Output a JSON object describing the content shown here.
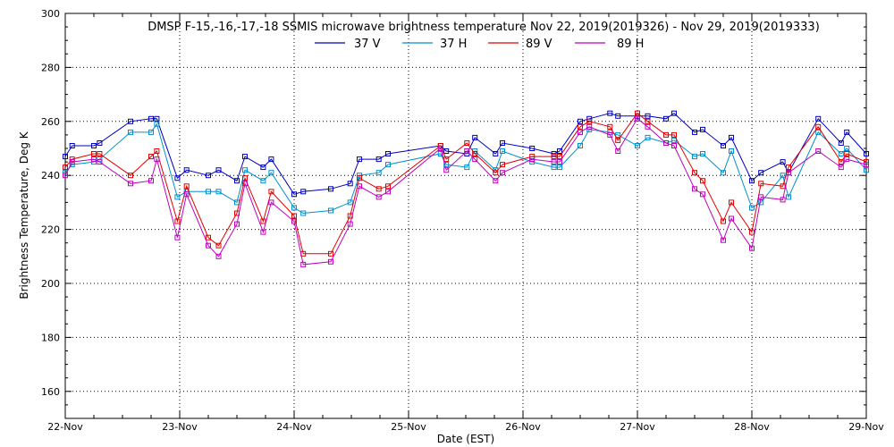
{
  "chart_data": {
    "type": "line",
    "title": "DMSP F-15,-16,-17,-18 SSMIS microwave brightness temperature Nov 22, 2019(2019326) - Nov 29, 2019(2019333)",
    "xlabel": "Date (EST)",
    "ylabel": "Brightness Temperature, Deg K",
    "xlim": [
      0,
      7
    ],
    "ylim": [
      150,
      300
    ],
    "yticks": [
      160,
      180,
      200,
      220,
      240,
      260,
      280,
      300
    ],
    "xticks": [
      {
        "value": 0,
        "label": "22-Nov"
      },
      {
        "value": 1,
        "label": "23-Nov"
      },
      {
        "value": 2,
        "label": "24-Nov"
      },
      {
        "value": 3,
        "label": "25-Nov"
      },
      {
        "value": 4,
        "label": "26-Nov"
      },
      {
        "value": 5,
        "label": "27-Nov"
      },
      {
        "value": 6,
        "label": "28-Nov"
      },
      {
        "value": 7,
        "label": "29-Nov"
      }
    ],
    "grid": true,
    "legend_position": "top-center",
    "series": [
      {
        "name": "37 V",
        "color": "#0000c0",
        "points": [
          [
            0.0,
            247
          ],
          [
            0.06,
            251
          ],
          [
            0.25,
            251
          ],
          [
            0.3,
            252
          ],
          [
            0.57,
            260
          ],
          [
            0.75,
            261
          ],
          [
            0.8,
            261
          ],
          [
            0.98,
            239
          ],
          [
            1.06,
            242
          ],
          [
            1.25,
            240
          ],
          [
            1.34,
            242
          ],
          [
            1.5,
            238
          ],
          [
            1.57,
            247
          ],
          [
            1.73,
            243
          ],
          [
            1.8,
            246
          ],
          [
            2.0,
            233
          ],
          [
            2.08,
            234
          ],
          [
            2.32,
            235
          ],
          [
            2.49,
            237
          ],
          [
            2.57,
            246
          ],
          [
            2.74,
            246
          ],
          [
            2.82,
            248
          ],
          [
            3.28,
            251
          ],
          [
            3.33,
            249
          ],
          [
            3.51,
            248
          ],
          [
            3.58,
            254
          ],
          [
            3.76,
            248
          ],
          [
            3.82,
            252
          ],
          [
            4.08,
            250
          ],
          [
            4.27,
            248
          ],
          [
            4.32,
            249
          ],
          [
            4.5,
            260
          ],
          [
            4.58,
            261
          ],
          [
            4.76,
            263
          ],
          [
            4.83,
            262
          ],
          [
            5.0,
            262
          ],
          [
            5.09,
            262
          ],
          [
            5.25,
            261
          ],
          [
            5.32,
            263
          ],
          [
            5.5,
            256
          ],
          [
            5.57,
            257
          ],
          [
            5.75,
            251
          ],
          [
            5.82,
            254
          ],
          [
            6.0,
            238
          ],
          [
            6.08,
            241
          ],
          [
            6.27,
            245
          ],
          [
            6.32,
            241
          ],
          [
            6.58,
            261
          ],
          [
            6.78,
            252
          ],
          [
            6.83,
            256
          ],
          [
            7.0,
            248
          ]
        ]
      },
      {
        "name": "37 H",
        "color": "#0090d0",
        "points": [
          [
            0.0,
            241
          ],
          [
            0.06,
            244
          ],
          [
            0.25,
            245
          ],
          [
            0.3,
            246
          ],
          [
            0.57,
            256
          ],
          [
            0.75,
            256
          ],
          [
            0.8,
            259
          ],
          [
            0.98,
            232
          ],
          [
            1.06,
            234
          ],
          [
            1.25,
            234
          ],
          [
            1.34,
            234
          ],
          [
            1.5,
            230
          ],
          [
            1.57,
            242
          ],
          [
            1.73,
            238
          ],
          [
            1.8,
            241
          ],
          [
            2.0,
            228
          ],
          [
            2.08,
            226
          ],
          [
            2.32,
            227
          ],
          [
            2.49,
            230
          ],
          [
            2.57,
            240
          ],
          [
            2.74,
            241
          ],
          [
            2.82,
            244
          ],
          [
            3.28,
            248
          ],
          [
            3.33,
            244
          ],
          [
            3.51,
            243
          ],
          [
            3.58,
            249
          ],
          [
            3.76,
            242
          ],
          [
            3.82,
            249
          ],
          [
            4.08,
            245
          ],
          [
            4.27,
            243
          ],
          [
            4.32,
            243
          ],
          [
            4.5,
            251
          ],
          [
            4.58,
            257
          ],
          [
            4.76,
            256
          ],
          [
            4.83,
            255
          ],
          [
            5.0,
            251
          ],
          [
            5.09,
            254
          ],
          [
            5.25,
            252
          ],
          [
            5.32,
            253
          ],
          [
            5.5,
            247
          ],
          [
            5.57,
            248
          ],
          [
            5.75,
            241
          ],
          [
            5.82,
            249
          ],
          [
            6.0,
            228
          ],
          [
            6.08,
            230
          ],
          [
            6.27,
            240
          ],
          [
            6.32,
            232
          ],
          [
            6.58,
            256
          ],
          [
            6.78,
            248
          ],
          [
            6.83,
            250
          ],
          [
            7.0,
            242
          ]
        ]
      },
      {
        "name": "89 V",
        "color": "#e00000",
        "points": [
          [
            0.0,
            243
          ],
          [
            0.06,
            246
          ],
          [
            0.25,
            248
          ],
          [
            0.3,
            248
          ],
          [
            0.57,
            240
          ],
          [
            0.75,
            247
          ],
          [
            0.8,
            249
          ],
          [
            0.98,
            223
          ],
          [
            1.06,
            236
          ],
          [
            1.25,
            217
          ],
          [
            1.34,
            214
          ],
          [
            1.5,
            226
          ],
          [
            1.57,
            239
          ],
          [
            1.73,
            223
          ],
          [
            1.8,
            234
          ],
          [
            2.0,
            225
          ],
          [
            2.08,
            211
          ],
          [
            2.32,
            211
          ],
          [
            2.49,
            225
          ],
          [
            2.57,
            239
          ],
          [
            2.74,
            235
          ],
          [
            2.82,
            236
          ],
          [
            3.28,
            251
          ],
          [
            3.33,
            246
          ],
          [
            3.51,
            252
          ],
          [
            3.58,
            248
          ],
          [
            3.76,
            241
          ],
          [
            3.82,
            244
          ],
          [
            4.08,
            247
          ],
          [
            4.27,
            247
          ],
          [
            4.32,
            247
          ],
          [
            4.5,
            258
          ],
          [
            4.58,
            260
          ],
          [
            4.76,
            258
          ],
          [
            4.83,
            253
          ],
          [
            5.0,
            263
          ],
          [
            5.09,
            260
          ],
          [
            5.25,
            255
          ],
          [
            5.32,
            255
          ],
          [
            5.5,
            241
          ],
          [
            5.57,
            238
          ],
          [
            5.75,
            223
          ],
          [
            5.82,
            230
          ],
          [
            6.0,
            219
          ],
          [
            6.08,
            237
          ],
          [
            6.27,
            236
          ],
          [
            6.32,
            243
          ],
          [
            6.58,
            258
          ],
          [
            6.78,
            245
          ],
          [
            6.83,
            248
          ],
          [
            7.0,
            245
          ]
        ]
      },
      {
        "name": "89 H",
        "color": "#c000c0",
        "points": [
          [
            0.0,
            240
          ],
          [
            0.06,
            245
          ],
          [
            0.25,
            246
          ],
          [
            0.3,
            245
          ],
          [
            0.57,
            237
          ],
          [
            0.75,
            238
          ],
          [
            0.8,
            246
          ],
          [
            0.98,
            217
          ],
          [
            1.06,
            233
          ],
          [
            1.25,
            214
          ],
          [
            1.34,
            210
          ],
          [
            1.5,
            222
          ],
          [
            1.57,
            237
          ],
          [
            1.73,
            219
          ],
          [
            1.8,
            230
          ],
          [
            2.0,
            223
          ],
          [
            2.08,
            207
          ],
          [
            2.32,
            208
          ],
          [
            2.49,
            222
          ],
          [
            2.57,
            236
          ],
          [
            2.74,
            232
          ],
          [
            2.82,
            234
          ],
          [
            3.28,
            250
          ],
          [
            3.33,
            242
          ],
          [
            3.51,
            249
          ],
          [
            3.58,
            246
          ],
          [
            3.76,
            238
          ],
          [
            3.82,
            241
          ],
          [
            4.08,
            246
          ],
          [
            4.27,
            245
          ],
          [
            4.32,
            245
          ],
          [
            4.5,
            256
          ],
          [
            4.58,
            258
          ],
          [
            4.76,
            255
          ],
          [
            4.83,
            249
          ],
          [
            5.0,
            261
          ],
          [
            5.09,
            258
          ],
          [
            5.25,
            252
          ],
          [
            5.32,
            251
          ],
          [
            5.5,
            235
          ],
          [
            5.57,
            233
          ],
          [
            5.75,
            216
          ],
          [
            5.82,
            224
          ],
          [
            6.0,
            213
          ],
          [
            6.08,
            232
          ],
          [
            6.27,
            231
          ],
          [
            6.32,
            241
          ],
          [
            6.58,
            249
          ],
          [
            6.78,
            243
          ],
          [
            6.83,
            246
          ],
          [
            7.0,
            244
          ]
        ]
      }
    ]
  }
}
